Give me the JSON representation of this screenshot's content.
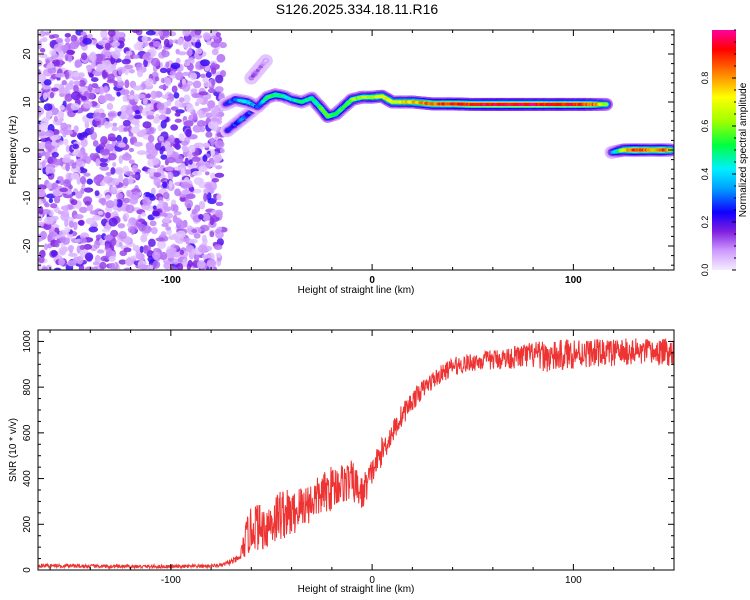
{
  "title": "S126.2025.334.18.11.R16",
  "colorbar": {
    "label": "Normalized spectral amplitude",
    "ticks": [
      "0.0",
      "0.2",
      "0.4",
      "0.6",
      "0.8"
    ],
    "tick_values": [
      0.0,
      0.2,
      0.4,
      0.6,
      0.8
    ],
    "range": [
      0,
      1
    ]
  },
  "chart_data": [
    {
      "type": "heatmap",
      "title": "",
      "xlabel": "Height of straight line (km)",
      "ylabel": "Frequency (Hz)",
      "xlim": [
        -166,
        150
      ],
      "ylim": [
        -25,
        25
      ],
      "xticks": [
        -100,
        0,
        100
      ],
      "xtick_labels": [
        "-100",
        "0",
        "100"
      ],
      "yticks": [
        -20,
        -10,
        0,
        10,
        20
      ],
      "ytick_labels": [
        "-20",
        "-10",
        "0",
        "10",
        "20"
      ],
      "noise_region_x": [
        -166,
        -74
      ],
      "signal_trace": {
        "x": [
          -73,
          -68,
          -62,
          -57,
          -52,
          -48,
          -44,
          -40,
          -35,
          -30,
          -26,
          -22,
          -18,
          -14,
          -10,
          -5,
          0,
          5,
          10,
          20,
          30,
          40,
          50,
          60,
          70,
          80,
          90,
          100,
          110,
          117
        ],
        "freq": [
          9.5,
          10.5,
          10,
          9,
          11,
          11.5,
          11.2,
          10.5,
          10,
          10.8,
          9,
          7,
          7.5,
          9,
          10.5,
          11,
          11,
          11.2,
          10,
          10,
          9.6,
          9.6,
          9.5,
          9.5,
          9.5,
          9.5,
          9.5,
          9.5,
          9.5,
          9.5
        ],
        "amplitude": [
          0.2,
          0.35,
          0.45,
          0.3,
          0.5,
          0.55,
          0.5,
          0.4,
          0.5,
          0.45,
          0.55,
          0.6,
          0.55,
          0.5,
          0.6,
          0.6,
          0.65,
          0.7,
          0.7,
          0.75,
          0.85,
          0.9,
          0.92,
          0.95,
          0.95,
          0.95,
          0.9,
          0.92,
          0.85,
          0.6
        ]
      },
      "branch_trace": {
        "x": [
          -72,
          -66,
          -60,
          -55
        ],
        "freq": [
          4,
          6,
          8,
          10
        ],
        "amplitude": [
          0.25,
          0.3,
          0.25,
          0.2
        ]
      },
      "faint_trace": {
        "x": [
          -60,
          -56,
          -52
        ],
        "freq": [
          15,
          17,
          19
        ],
        "amplitude": [
          0.1,
          0.1,
          0.08
        ]
      },
      "second_segment": {
        "x": [
          119,
          125,
          130,
          135,
          140,
          145,
          149
        ],
        "freq": [
          -0.5,
          0,
          0,
          0,
          0,
          0,
          0
        ],
        "amplitude": [
          0.3,
          0.7,
          0.9,
          0.85,
          0.8,
          0.9,
          0.7
        ]
      }
    },
    {
      "type": "line",
      "title": "",
      "xlabel": "Height of straight line (km)",
      "ylabel": "SNR (10 * v/v)",
      "xlim": [
        -166,
        150
      ],
      "ylim": [
        0,
        1050
      ],
      "xticks": [
        -100,
        0,
        100
      ],
      "xtick_labels": [
        "-100",
        "0",
        "100"
      ],
      "yticks": [
        0,
        200,
        400,
        600,
        800,
        1000
      ],
      "ytick_labels": [
        "0",
        "200",
        "400",
        "600",
        "800",
        "1000"
      ],
      "color": "#ee3333",
      "x": [
        -166,
        -150,
        -130,
        -110,
        -90,
        -75,
        -66,
        -62,
        -58,
        -55,
        -50,
        -45,
        -40,
        -35,
        -30,
        -25,
        -20,
        -15,
        -10,
        -5,
        0,
        5,
        10,
        15,
        20,
        25,
        30,
        35,
        40,
        50,
        60,
        70,
        80,
        90,
        100,
        110,
        120,
        130,
        140,
        150
      ],
      "values": [
        20,
        18,
        15,
        15,
        15,
        20,
        50,
        150,
        200,
        180,
        210,
        250,
        240,
        280,
        300,
        330,
        360,
        380,
        390,
        330,
        430,
        520,
        600,
        680,
        740,
        790,
        830,
        860,
        890,
        910,
        920,
        930,
        940,
        930,
        950,
        950,
        950,
        955,
        950,
        955
      ],
      "noise_amplitude": [
        8,
        8,
        8,
        8,
        8,
        8,
        15,
        90,
        110,
        100,
        110,
        120,
        100,
        100,
        90,
        90,
        100,
        90,
        90,
        80,
        60,
        60,
        50,
        50,
        45,
        40,
        40,
        40,
        40,
        40,
        45,
        50,
        60,
        70,
        70,
        60,
        60,
        60,
        60,
        60
      ]
    }
  ]
}
